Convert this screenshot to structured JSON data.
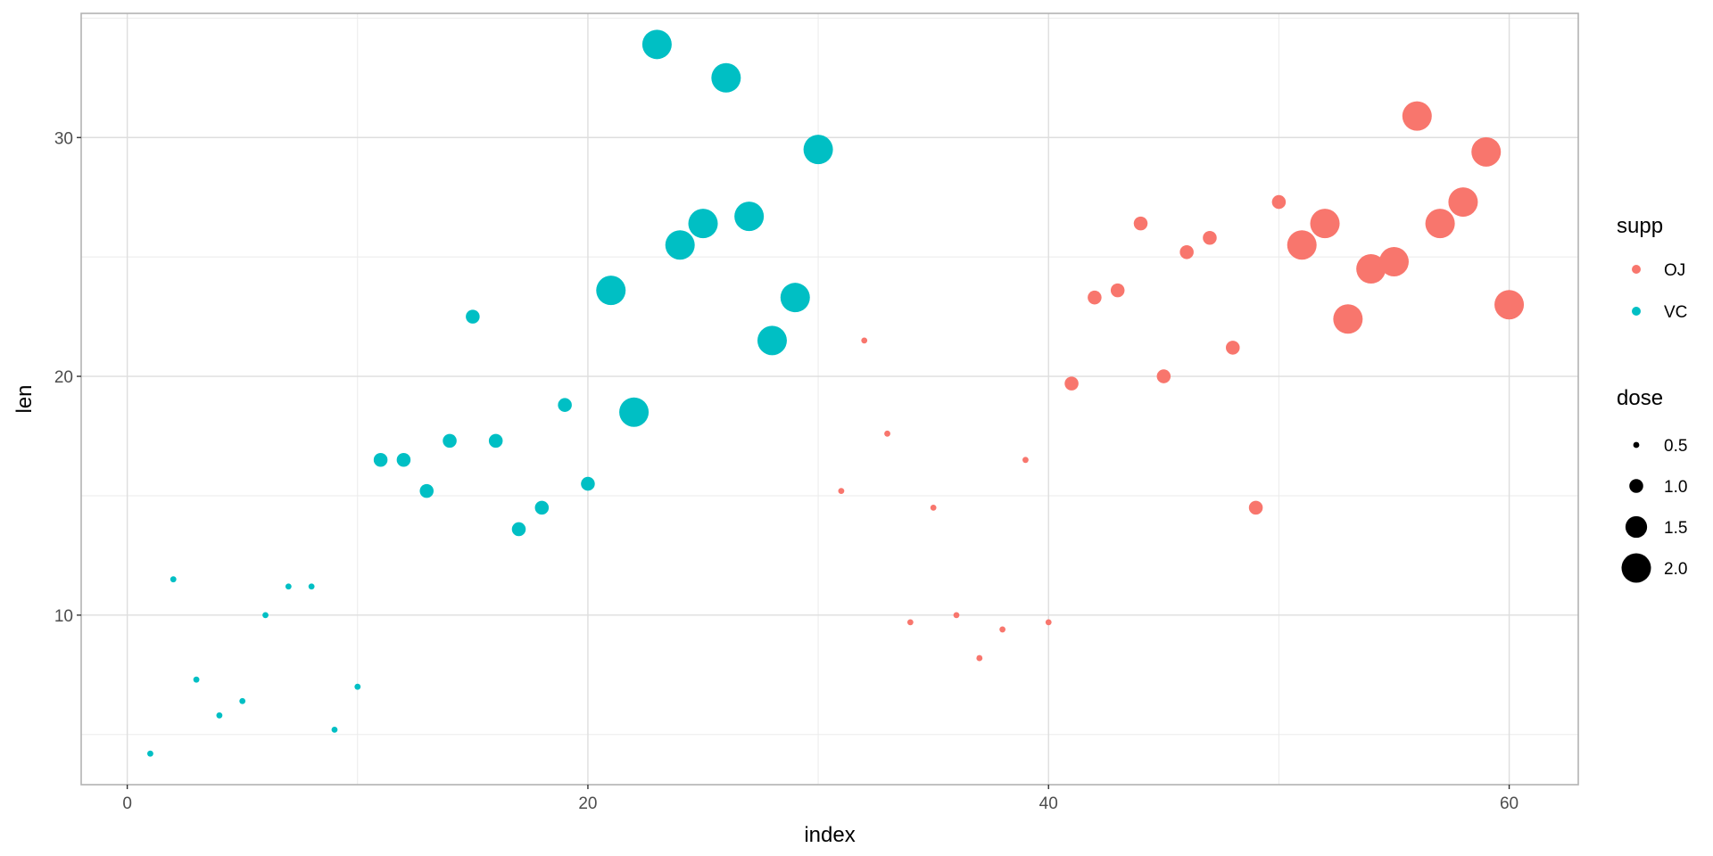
{
  "chart_data": {
    "type": "scatter",
    "title": "",
    "xlabel": "index",
    "ylabel": "len",
    "xlim": [
      -2,
      63
    ],
    "ylim": [
      2.9,
      35.2
    ],
    "x_ticks": [
      0,
      20,
      40,
      60
    ],
    "x_tick_labels": [
      "0",
      "20",
      "40",
      "60"
    ],
    "y_ticks": [
      10,
      20,
      30
    ],
    "y_tick_labels": [
      "10",
      "20",
      "30"
    ],
    "grid": true,
    "theme": "light",
    "legend_position": "right",
    "color_legend": {
      "title": "supp",
      "entries": [
        {
          "label": "OJ",
          "color": "#F8766D"
        },
        {
          "label": "VC",
          "color": "#00BFC4"
        }
      ]
    },
    "size_legend": {
      "title": "dose",
      "entries": [
        {
          "label": "0.5",
          "value": 0.5
        },
        {
          "label": "1.0",
          "value": 1.0
        },
        {
          "label": "1.5",
          "value": 1.5
        },
        {
          "label": "2.0",
          "value": 2.0
        }
      ]
    },
    "series": [
      {
        "name": "VC",
        "color": "#00BFC4",
        "points": [
          {
            "x": 1,
            "y": 4.2,
            "dose": 0.5
          },
          {
            "x": 2,
            "y": 11.5,
            "dose": 0.5
          },
          {
            "x": 3,
            "y": 7.3,
            "dose": 0.5
          },
          {
            "x": 4,
            "y": 5.8,
            "dose": 0.5
          },
          {
            "x": 5,
            "y": 6.4,
            "dose": 0.5
          },
          {
            "x": 6,
            "y": 10.0,
            "dose": 0.5
          },
          {
            "x": 7,
            "y": 11.2,
            "dose": 0.5
          },
          {
            "x": 8,
            "y": 11.2,
            "dose": 0.5
          },
          {
            "x": 9,
            "y": 5.2,
            "dose": 0.5
          },
          {
            "x": 10,
            "y": 7.0,
            "dose": 0.5
          },
          {
            "x": 11,
            "y": 16.5,
            "dose": 1.0
          },
          {
            "x": 12,
            "y": 16.5,
            "dose": 1.0
          },
          {
            "x": 13,
            "y": 15.2,
            "dose": 1.0
          },
          {
            "x": 14,
            "y": 17.3,
            "dose": 1.0
          },
          {
            "x": 15,
            "y": 22.5,
            "dose": 1.0
          },
          {
            "x": 16,
            "y": 17.3,
            "dose": 1.0
          },
          {
            "x": 17,
            "y": 13.6,
            "dose": 1.0
          },
          {
            "x": 18,
            "y": 14.5,
            "dose": 1.0
          },
          {
            "x": 19,
            "y": 18.8,
            "dose": 1.0
          },
          {
            "x": 20,
            "y": 15.5,
            "dose": 1.0
          },
          {
            "x": 21,
            "y": 23.6,
            "dose": 2.0
          },
          {
            "x": 22,
            "y": 18.5,
            "dose": 2.0
          },
          {
            "x": 23,
            "y": 33.9,
            "dose": 2.0
          },
          {
            "x": 24,
            "y": 25.5,
            "dose": 2.0
          },
          {
            "x": 25,
            "y": 26.4,
            "dose": 2.0
          },
          {
            "x": 26,
            "y": 32.5,
            "dose": 2.0
          },
          {
            "x": 27,
            "y": 26.7,
            "dose": 2.0
          },
          {
            "x": 28,
            "y": 21.5,
            "dose": 2.0
          },
          {
            "x": 29,
            "y": 23.3,
            "dose": 2.0
          },
          {
            "x": 30,
            "y": 29.5,
            "dose": 2.0
          }
        ]
      },
      {
        "name": "OJ",
        "color": "#F8766D",
        "points": [
          {
            "x": 31,
            "y": 15.2,
            "dose": 0.5
          },
          {
            "x": 32,
            "y": 21.5,
            "dose": 0.5
          },
          {
            "x": 33,
            "y": 17.6,
            "dose": 0.5
          },
          {
            "x": 34,
            "y": 9.7,
            "dose": 0.5
          },
          {
            "x": 35,
            "y": 14.5,
            "dose": 0.5
          },
          {
            "x": 36,
            "y": 10.0,
            "dose": 0.5
          },
          {
            "x": 37,
            "y": 8.2,
            "dose": 0.5
          },
          {
            "x": 38,
            "y": 9.4,
            "dose": 0.5
          },
          {
            "x": 39,
            "y": 16.5,
            "dose": 0.5
          },
          {
            "x": 40,
            "y": 9.7,
            "dose": 0.5
          },
          {
            "x": 41,
            "y": 19.7,
            "dose": 1.0
          },
          {
            "x": 42,
            "y": 23.3,
            "dose": 1.0
          },
          {
            "x": 43,
            "y": 23.6,
            "dose": 1.0
          },
          {
            "x": 44,
            "y": 26.4,
            "dose": 1.0
          },
          {
            "x": 45,
            "y": 20.0,
            "dose": 1.0
          },
          {
            "x": 46,
            "y": 25.2,
            "dose": 1.0
          },
          {
            "x": 47,
            "y": 25.8,
            "dose": 1.0
          },
          {
            "x": 48,
            "y": 21.2,
            "dose": 1.0
          },
          {
            "x": 49,
            "y": 14.5,
            "dose": 1.0
          },
          {
            "x": 50,
            "y": 27.3,
            "dose": 1.0
          },
          {
            "x": 51,
            "y": 25.5,
            "dose": 2.0
          },
          {
            "x": 52,
            "y": 26.4,
            "dose": 2.0
          },
          {
            "x": 53,
            "y": 22.4,
            "dose": 2.0
          },
          {
            "x": 54,
            "y": 24.5,
            "dose": 2.0
          },
          {
            "x": 55,
            "y": 24.8,
            "dose": 2.0
          },
          {
            "x": 56,
            "y": 30.9,
            "dose": 2.0
          },
          {
            "x": 57,
            "y": 26.4,
            "dose": 2.0
          },
          {
            "x": 58,
            "y": 27.3,
            "dose": 2.0
          },
          {
            "x": 59,
            "y": 29.4,
            "dose": 2.0
          },
          {
            "x": 60,
            "y": 23.0,
            "dose": 2.0
          }
        ]
      }
    ]
  }
}
